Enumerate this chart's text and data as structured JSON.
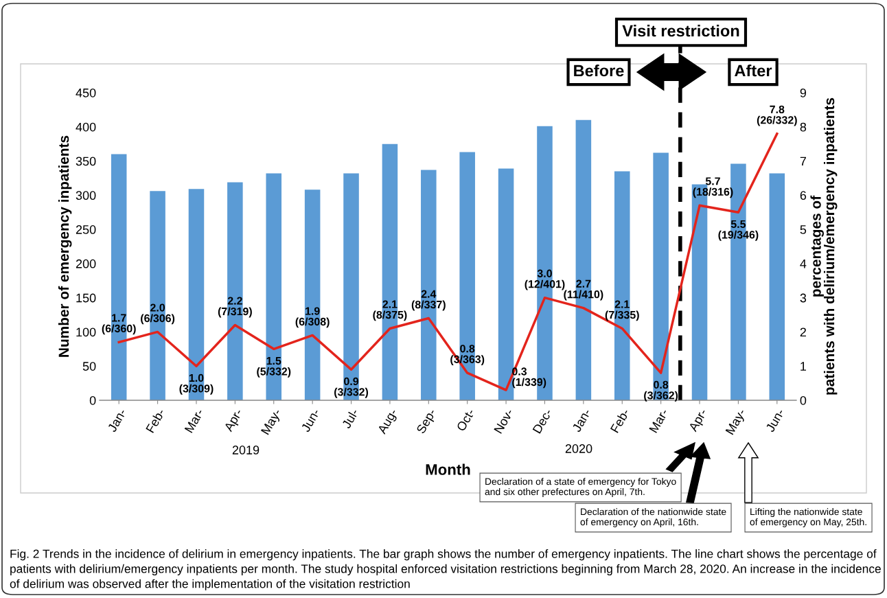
{
  "chart_data": {
    "type": "bar",
    "categories": [
      "Jan-",
      "Feb-",
      "Mar-",
      "Apr-",
      "May-",
      "Jun-",
      "Jul-",
      "Aug-",
      "Sep-",
      "Oct-",
      "Nov-",
      "Dec-",
      "Jan-",
      "Feb-",
      "Mar-",
      "Apr-",
      "May-",
      "Jun-"
    ],
    "series": [
      {
        "color": "#5b9bd5",
        "values": [
          360,
          306,
          309,
          319,
          332,
          308,
          332,
          375,
          337,
          363,
          339,
          401,
          410,
          335,
          362,
          316,
          346,
          332
        ]
      },
      {
        "type": "line",
        "axis": "y2",
        "color": "#e3241c",
        "marker": "none",
        "line_style": "solid",
        "values": [
          1.7,
          2.0,
          1.0,
          2.2,
          1.5,
          1.9,
          0.9,
          2.1,
          2.4,
          0.8,
          0.3,
          3.0,
          2.7,
          2.1,
          0.8,
          5.7,
          5.5,
          7.8
        ],
        "value_labels": [
          "1.7\n(6/360)",
          "2.0\n(6/306)",
          "1.0\n(3/309)",
          "2.2\n(7/319)",
          "1.5\n(5/332)",
          "1.9\n(6/308)",
          "0.9\n(3/332)",
          "2.1\n(8/375)",
          "2.4\n(8/337)",
          "0.8\n(3/363)",
          "0.3\n(1/339)",
          "3.0\n(12/401)",
          "2.7\n(11/410)",
          "2.1\n(7/335)",
          "0.8\n(3/362)",
          "5.7\n(18/316)",
          "5.5\n(19/346)",
          "7.8\n(26/332)"
        ]
      }
    ],
    "ylim": [
      0,
      450
    ],
    "yticks": [
      0,
      50,
      100,
      150,
      200,
      250,
      300,
      350,
      400,
      450
    ],
    "y2lim": [
      0,
      9
    ],
    "y2ticks": [
      0,
      1,
      2,
      3,
      4,
      5,
      6,
      7,
      8,
      9
    ],
    "xlabel": "Month",
    "ylabel": "Number of emergency inpatients",
    "y2label": "percentages of\npatients with delirium/emergency inpatients",
    "grid": false,
    "legend": false,
    "annotations": [
      "Visit restriction",
      "Before",
      "After",
      "2019",
      "2020",
      "Declaration of a state of emergency for Tokyo\nand six other prefectures on April, 7th.",
      "Declaration of the nationwide state\nof emergency on April, 16th.",
      "Lifting the nationwide state\nof emergency on May, 25th.",
      "Fig. 2 Trends in the incidence of delirium in emergency inpatients. The bar graph shows the number of emergency inpatients. The line chart shows the percentage of patients with delirium/emergency inpatients per month. The study hospital enforced visitation restrictions beginning from March 28, 2020. An increase in the incidence of delirium was observed after the implementation of the visitation restriction"
    ]
  }
}
